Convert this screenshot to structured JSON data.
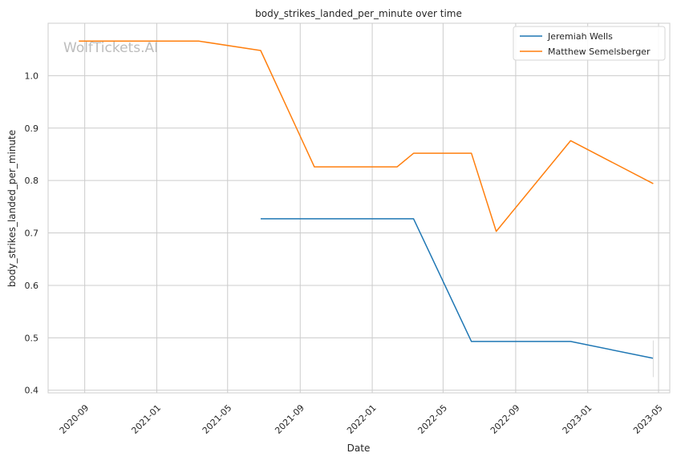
{
  "chart_data": {
    "type": "line",
    "title": "body_strikes_landed_per_minute over time",
    "xlabel": "Date",
    "ylabel": "body_strikes_landed_per_minute",
    "watermark": "WolfTickets.AI",
    "x_tick_labels": [
      "2020-09",
      "2021-01",
      "2021-05",
      "2021-09",
      "2022-01",
      "2022-05",
      "2022-09",
      "2023-01",
      "2023-05"
    ],
    "y_tick_labels": [
      "0.4",
      "0.5",
      "0.6",
      "0.7",
      "0.8",
      "0.9",
      "1.0"
    ],
    "ylim": [
      0.395,
      1.1
    ],
    "xlim": [
      "2020-07-01",
      "2023-05-20"
    ],
    "grid": true,
    "legend_position": "top-right",
    "series": [
      {
        "name": "Jeremiah Wells",
        "color": "#1f77b4",
        "points": [
          {
            "x": "2021-06-26",
            "y": 0.727
          },
          {
            "x": "2022-03-12",
            "y": 0.727
          },
          {
            "x": "2022-06-18",
            "y": 0.493
          },
          {
            "x": "2022-12-03",
            "y": 0.493
          },
          {
            "x": "2023-04-22",
            "y": 0.461
          }
        ]
      },
      {
        "name": "Matthew Semelsberger",
        "color": "#ff7f0e",
        "points": [
          {
            "x": "2020-08-22",
            "y": 1.066
          },
          {
            "x": "2021-03-13",
            "y": 1.066
          },
          {
            "x": "2021-06-26",
            "y": 1.048
          },
          {
            "x": "2021-09-25",
            "y": 0.826
          },
          {
            "x": "2022-02-12",
            "y": 0.826
          },
          {
            "x": "2022-03-12",
            "y": 0.852
          },
          {
            "x": "2022-06-18",
            "y": 0.852
          },
          {
            "x": "2022-07-30",
            "y": 0.703
          },
          {
            "x": "2022-12-03",
            "y": 0.876
          },
          {
            "x": "2023-04-22",
            "y": 0.794
          }
        ]
      }
    ],
    "error_bar": {
      "x": "2023-04-22",
      "y_low": 0.425,
      "y_high": 0.495
    }
  }
}
